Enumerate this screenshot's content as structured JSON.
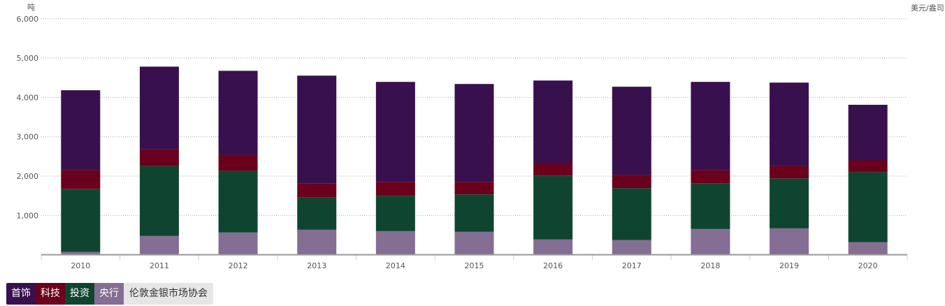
{
  "chart_data": {
    "type": "bar",
    "stacked": true,
    "categories": [
      "2010",
      "2011",
      "2012",
      "2013",
      "2014",
      "2015",
      "2016",
      "2017",
      "2018",
      "2019",
      "2020"
    ],
    "series": [
      {
        "name": "央行",
        "color": "#846e93",
        "values": [
          70,
          476,
          565,
          635,
          600,
          582,
          388,
          371,
          653,
          670,
          318
        ]
      },
      {
        "name": "投资",
        "color": "#0f4530",
        "values": [
          1606,
          1783,
          1570,
          830,
          900,
          953,
          1624,
          1323,
          1165,
          1271,
          1782
        ]
      },
      {
        "name": "科技",
        "color": "#6a001c",
        "values": [
          477,
          423,
          406,
          353,
          353,
          318,
          317,
          335,
          335,
          318,
          300
        ]
      },
      {
        "name": "首饰",
        "color": "#38104e",
        "values": [
          2029,
          2100,
          2135,
          2735,
          2541,
          2488,
          2100,
          2242,
          2241,
          2117,
          1412
        ]
      }
    ],
    "ylabel": "吨",
    "y2label": "美元/盎司",
    "ylim": [
      0,
      6000
    ],
    "yticks": [
      "1,000",
      "2,000",
      "3,000",
      "4,000",
      "5,000",
      "6,000"
    ],
    "grid": true,
    "legend_order": [
      "首饰",
      "科技",
      "投资",
      "央行"
    ],
    "legend_placement": "bottom-left",
    "source": "伦敦金银市场协会"
  }
}
